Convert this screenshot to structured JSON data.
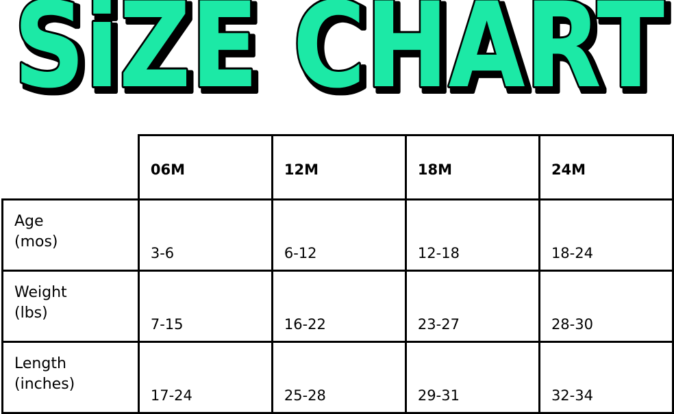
{
  "title": "SiZE CHART",
  "colors": {
    "title_fill": "#1de9a6",
    "title_outline": "#000000"
  },
  "table": {
    "columns": [
      "06M",
      "12M",
      "18M",
      "24M"
    ],
    "rows": [
      {
        "label_line1": "Age",
        "label_line2": "(mos)",
        "values": [
          "3-6",
          "6-12",
          "12-18",
          "18-24"
        ]
      },
      {
        "label_line1": "Weight",
        "label_line2": "(lbs)",
        "values": [
          "7-15",
          "16-22",
          "23-27",
          "28-30"
        ]
      },
      {
        "label_line1": "Length",
        "label_line2": "(inches)",
        "values": [
          "17-24",
          "25-28",
          "29-31",
          "32-34"
        ]
      }
    ]
  }
}
